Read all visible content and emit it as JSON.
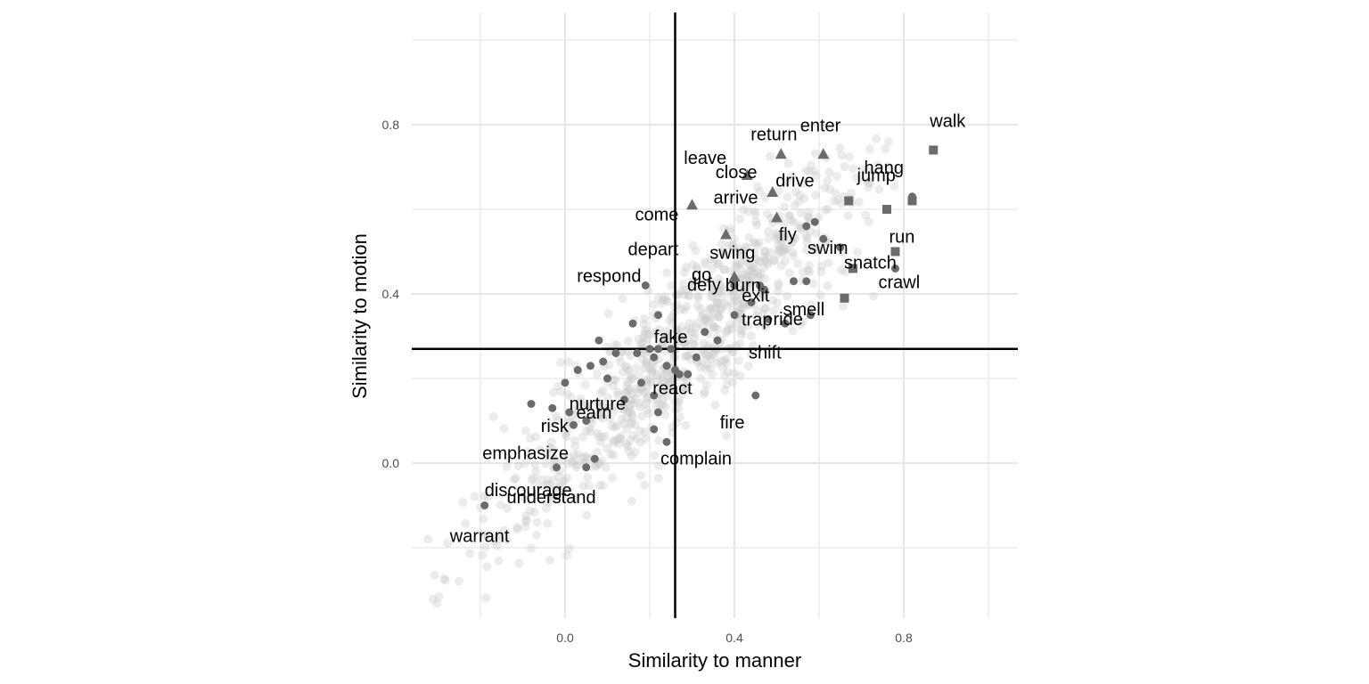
{
  "chart_data": {
    "type": "scatter",
    "title": "",
    "xlabel": "Similarity to manner",
    "ylabel": "Similarity to motion",
    "xlim": [
      -0.36,
      1.06
    ],
    "ylim": [
      -0.36,
      1.06
    ],
    "x_ticks": [
      0.0,
      0.4,
      0.8
    ],
    "y_ticks": [
      0.0,
      0.4,
      0.8
    ],
    "x_tick_labels": [
      "0.0",
      "0.4",
      "0.8"
    ],
    "y_tick_labels": [
      "0.0",
      "0.4",
      "0.8"
    ],
    "grid": true,
    "reference_lines": {
      "vertical_x": 0.26,
      "horizontal_y": 0.27
    },
    "colors": {
      "highlight": "#6b6b6b",
      "background_points": "#c8c8c8",
      "grid": "#e6e6e6",
      "reference": "#000000"
    },
    "labeled_points": [
      {
        "word": "walk",
        "x": 0.87,
        "y": 0.74,
        "shape": "square"
      },
      {
        "word": "hang",
        "x": 0.82,
        "y": 0.63,
        "shape": "circle"
      },
      {
        "word": "jump",
        "x": 0.82,
        "y": 0.62,
        "shape": "square"
      },
      {
        "word": "run",
        "x": 0.78,
        "y": 0.5,
        "shape": "square"
      },
      {
        "word": "crawl",
        "x": 0.78,
        "y": 0.46,
        "shape": "circle"
      },
      {
        "word": "enter",
        "x": 0.61,
        "y": 0.73,
        "shape": "triangle"
      },
      {
        "word": "return",
        "x": 0.51,
        "y": 0.73,
        "shape": "triangle"
      },
      {
        "word": "leave",
        "x": 0.43,
        "y": 0.68,
        "shape": "triangle"
      },
      {
        "word": "drive",
        "x": 0.67,
        "y": 0.62,
        "shape": "square"
      },
      {
        "word": "close",
        "x": 0.49,
        "y": 0.64,
        "shape": "triangle"
      },
      {
        "word": "arrive",
        "x": 0.5,
        "y": 0.58,
        "shape": "triangle"
      },
      {
        "word": "depart",
        "x": 0.3,
        "y": 0.61,
        "shape": "triangle"
      },
      {
        "word": "swim",
        "x": 0.76,
        "y": 0.6,
        "shape": "square"
      },
      {
        "word": "swing",
        "x": 0.59,
        "y": 0.57,
        "shape": "circle"
      },
      {
        "word": "come",
        "x": 0.38,
        "y": 0.54,
        "shape": "triangle"
      },
      {
        "word": "fly",
        "x": 0.65,
        "y": 0.51,
        "shape": "circle"
      },
      {
        "word": "snatch",
        "x": 0.68,
        "y": 0.46,
        "shape": "square"
      },
      {
        "word": "burn",
        "x": 0.57,
        "y": 0.43,
        "shape": "circle"
      },
      {
        "word": "go",
        "x": 0.4,
        "y": 0.44,
        "shape": "triangle"
      },
      {
        "word": "defy",
        "x": 0.4,
        "y": 0.42,
        "shape": "circle"
      },
      {
        "word": "respond",
        "x": 0.19,
        "y": 0.42,
        "shape": "circle"
      },
      {
        "word": "exit",
        "x": 0.47,
        "y": 0.41,
        "shape": "circle"
      },
      {
        "word": "trap",
        "x": 0.48,
        "y": 0.34,
        "shape": "circle"
      },
      {
        "word": "smell",
        "x": 0.66,
        "y": 0.39,
        "shape": "square"
      },
      {
        "word": "ride",
        "x": 0.58,
        "y": 0.35,
        "shape": "circle"
      },
      {
        "word": "shift",
        "x": 0.52,
        "y": 0.33,
        "shape": "circle"
      },
      {
        "word": "fake",
        "x": 0.33,
        "y": 0.31,
        "shape": "circle"
      },
      {
        "word": "react",
        "x": 0.27,
        "y": 0.21,
        "shape": "circle"
      },
      {
        "word": "nurture",
        "x": 0.21,
        "y": 0.16,
        "shape": "circle"
      },
      {
        "word": "fire",
        "x": 0.45,
        "y": 0.16,
        "shape": "circle"
      },
      {
        "word": "earn",
        "x": 0.22,
        "y": 0.12,
        "shape": "circle"
      },
      {
        "word": "risk",
        "x": 0.21,
        "y": 0.08,
        "shape": "circle"
      },
      {
        "word": "complain",
        "x": 0.24,
        "y": 0.05,
        "shape": "circle"
      },
      {
        "word": "emphasize",
        "x": 0.07,
        "y": 0.01,
        "shape": "circle"
      },
      {
        "word": "discourage",
        "x": 0.05,
        "y": -0.01,
        "shape": "circle"
      },
      {
        "word": "understand",
        "x": -0.02,
        "y": -0.01,
        "shape": "circle"
      },
      {
        "word": "warrant",
        "x": -0.19,
        "y": -0.1,
        "shape": "circle"
      }
    ],
    "unlabeled_highlight_points": [
      [
        0.16,
        0.33
      ],
      [
        0.2,
        0.27
      ],
      [
        0.22,
        0.35
      ],
      [
        0.12,
        0.26
      ],
      [
        0.09,
        0.24
      ],
      [
        0.06,
        0.23
      ],
      [
        0.03,
        0.22
      ],
      [
        0.0,
        0.19
      ],
      [
        -0.03,
        0.13
      ],
      [
        -0.08,
        0.14
      ],
      [
        0.01,
        0.12
      ],
      [
        0.05,
        0.1
      ],
      [
        0.14,
        0.15
      ],
      [
        0.18,
        0.19
      ],
      [
        0.21,
        0.25
      ],
      [
        0.24,
        0.23
      ],
      [
        0.26,
        0.22
      ],
      [
        0.29,
        0.21
      ],
      [
        0.36,
        0.29
      ],
      [
        0.4,
        0.35
      ],
      [
        0.44,
        0.38
      ],
      [
        0.46,
        0.42
      ],
      [
        0.54,
        0.43
      ],
      [
        0.57,
        0.56
      ],
      [
        0.61,
        0.53
      ],
      [
        0.17,
        0.26
      ],
      [
        0.22,
        0.27
      ],
      [
        0.08,
        0.29
      ],
      [
        0.02,
        0.09
      ],
      [
        0.1,
        0.2
      ],
      [
        0.25,
        0.27
      ],
      [
        0.31,
        0.25
      ]
    ]
  }
}
